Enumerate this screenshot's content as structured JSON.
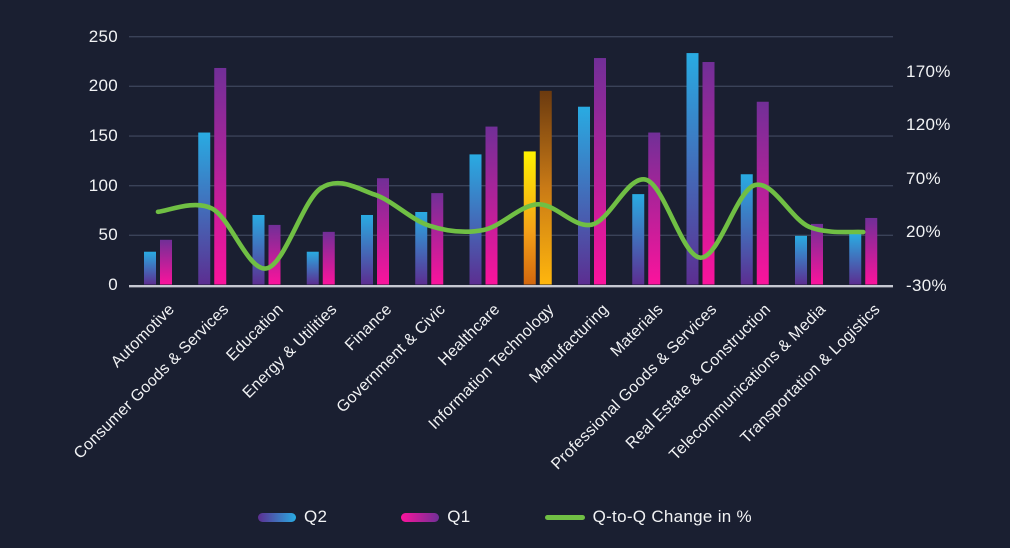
{
  "chart_data": {
    "type": "bar-line-combo",
    "categories": [
      "Automotive",
      "Consumer Goods & Services",
      "Education",
      "Energy & Utilities",
      "Finance",
      "Government & Civic",
      "Healthcare",
      "Information Technology",
      "Manufacturing",
      "Materials",
      "Professional Goods & Services",
      "Real Estate & Construction",
      "Telecommunications & Media",
      "Transportation & Logistics"
    ],
    "series": [
      {
        "name": "Q2",
        "type": "bar",
        "axis": "left",
        "values": [
          33,
          153,
          70,
          33,
          70,
          73,
          131,
          134,
          179,
          91,
          233,
          111,
          49,
          51
        ]
      },
      {
        "name": "Q1",
        "type": "bar",
        "axis": "left",
        "values": [
          45,
          218,
          60,
          53,
          107,
          92,
          159,
          195,
          228,
          153,
          224,
          184,
          61,
          67
        ]
      },
      {
        "name": "Q-to-Q Change in %",
        "type": "line",
        "axis": "right",
        "values": [
          39,
          42,
          -14,
          61,
          55,
          26,
          22,
          46,
          27,
          69,
          -4,
          64,
          25,
          20
        ]
      }
    ],
    "left_axis": {
      "ticks": [
        250,
        200,
        150,
        100,
        50,
        0
      ],
      "min": 0,
      "max": 250
    },
    "right_axis": {
      "ticks": [
        "170%",
        "120%",
        "70%",
        "20%",
        "-30%"
      ],
      "min_pct": -30,
      "tick_step_pct": 50
    },
    "highlighted_category": {
      "name": "Information Technology",
      "index": 7
    },
    "grid": true,
    "legend_position": "bottom"
  },
  "legend": {
    "q2_label": "Q2",
    "q1_label": "Q1",
    "line_label": "Q-to-Q Change in %"
  },
  "colors": {
    "background": "#1a1f31",
    "gridline": "#3a4258",
    "axis_baseline": "#c6c8d2",
    "text": "#f1f2f4",
    "q2_bar_top": "#29abe2",
    "q2_bar_bottom": "#5c2e91",
    "q1_bar_top": "#712f97",
    "q1_bar_bottom": "#fb139c",
    "highlight_q2_top": "#fff200",
    "highlight_q2_mid": "#f5a018",
    "highlight_q2_bottom": "#d2670e",
    "highlight_q1_top": "#6b3a0f",
    "highlight_q1_mid": "#c97a16",
    "highlight_q1_bottom": "#ffb60d",
    "line": "#70bf44"
  }
}
